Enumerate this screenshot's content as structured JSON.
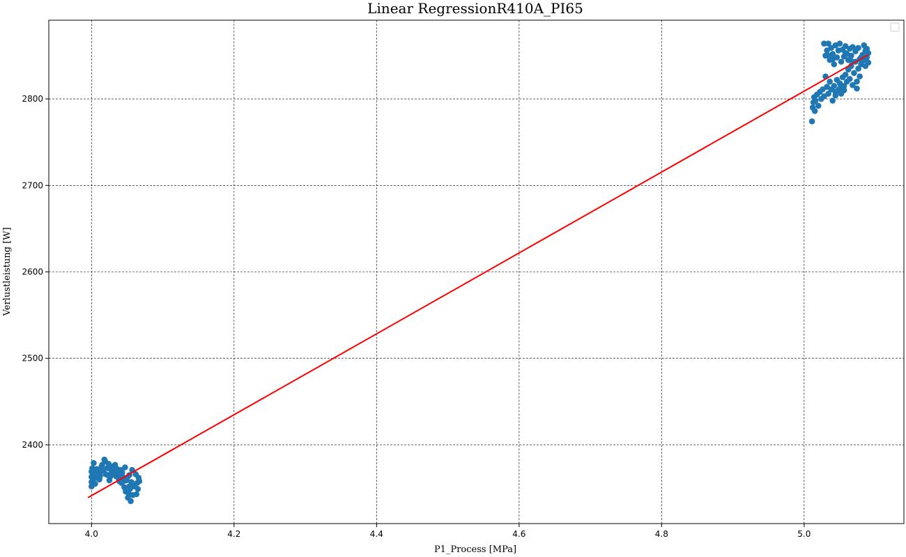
{
  "chart_data": {
    "type": "scatter",
    "title": "Linear RegressionR410A_PI65",
    "xlabel": "P1_Process [MPa]",
    "ylabel": "Verlustleistung [W]",
    "xlim": [
      3.94,
      5.14
    ],
    "ylim": [
      2309,
      2891
    ],
    "x_ticks": [
      4.0,
      4.2,
      4.4,
      4.6,
      4.8,
      5.0
    ],
    "x_tick_labels": [
      "4.0",
      "4.2",
      "4.4",
      "4.6",
      "4.8",
      "5.0"
    ],
    "y_ticks": [
      2400,
      2500,
      2600,
      2700,
      2800
    ],
    "y_tick_labels": [
      "2400",
      "2500",
      "2600",
      "2700",
      "2800"
    ],
    "grid": true,
    "legend": {
      "placement": "top-right",
      "entries": []
    },
    "colors": {
      "scatter": "#1f77b4",
      "regression": "#ff0000"
    },
    "series": [
      {
        "type": "scatter",
        "points": [
          [
            4.0,
            2369
          ],
          [
            4.0,
            2357
          ],
          [
            4.0,
            2363
          ],
          [
            4.0,
            2352
          ],
          [
            4.001,
            2373
          ],
          [
            4.002,
            2360
          ],
          [
            4.003,
            2379
          ],
          [
            4.004,
            2366
          ],
          [
            4.006,
            2362
          ],
          [
            4.008,
            2371
          ],
          [
            4.01,
            2368
          ],
          [
            4.012,
            2364
          ],
          [
            4.014,
            2375
          ],
          [
            4.016,
            2370
          ],
          [
            4.018,
            2383
          ],
          [
            4.02,
            2366
          ],
          [
            4.022,
            2373
          ],
          [
            4.024,
            2378
          ],
          [
            4.026,
            2363
          ],
          [
            4.028,
            2370
          ],
          [
            4.03,
            2368
          ],
          [
            4.032,
            2375
          ],
          [
            4.034,
            2364
          ],
          [
            4.036,
            2372
          ],
          [
            4.038,
            2361
          ],
          [
            4.04,
            2367
          ],
          [
            4.042,
            2356
          ],
          [
            4.044,
            2363
          ],
          [
            4.046,
            2351
          ],
          [
            4.048,
            2346
          ],
          [
            4.049,
            2359
          ],
          [
            4.05,
            2362
          ],
          [
            4.051,
            2339
          ],
          [
            4.052,
            2344
          ],
          [
            4.053,
            2365
          ],
          [
            4.054,
            2349
          ],
          [
            4.055,
            2335
          ],
          [
            4.056,
            2357
          ],
          [
            4.057,
            2371
          ],
          [
            4.058,
            2342
          ],
          [
            4.06,
            2352
          ],
          [
            4.062,
            2366
          ],
          [
            4.063,
            2343
          ],
          [
            4.064,
            2356
          ],
          [
            4.065,
            2349
          ],
          [
            4.066,
            2362
          ],
          [
            4.067,
            2358
          ],
          [
            4.047,
            2374
          ],
          [
            4.045,
            2358
          ],
          [
            4.043,
            2368
          ],
          [
            4.041,
            2371
          ],
          [
            4.039,
            2358
          ],
          [
            4.035,
            2369
          ],
          [
            4.031,
            2372
          ],
          [
            4.027,
            2375
          ],
          [
            4.023,
            2365
          ],
          [
            4.019,
            2381
          ],
          [
            4.015,
            2377
          ],
          [
            4.011,
            2360
          ],
          [
            4.007,
            2372
          ],
          [
            4.005,
            2355
          ],
          [
            4.025,
            2359
          ],
          [
            4.033,
            2377
          ],
          [
            4.053,
            2352
          ],
          [
            5.011,
            2774
          ],
          [
            5.012,
            2790
          ],
          [
            5.013,
            2796
          ],
          [
            5.014,
            2802
          ],
          [
            5.015,
            2786
          ],
          [
            5.016,
            2798
          ],
          [
            5.018,
            2805
          ],
          [
            5.02,
            2792
          ],
          [
            5.022,
            2808
          ],
          [
            5.024,
            2800
          ],
          [
            5.026,
            2811
          ],
          [
            5.028,
            2803
          ],
          [
            5.03,
            2826
          ],
          [
            5.032,
            2814
          ],
          [
            5.034,
            2806
          ],
          [
            5.036,
            2820
          ],
          [
            5.038,
            2811
          ],
          [
            5.04,
            2798
          ],
          [
            5.042,
            2815
          ],
          [
            5.044,
            2808
          ],
          [
            5.046,
            2822
          ],
          [
            5.048,
            2810
          ],
          [
            5.05,
            2818
          ],
          [
            5.052,
            2806
          ],
          [
            5.054,
            2825
          ],
          [
            5.056,
            2815
          ],
          [
            5.058,
            2828
          ],
          [
            5.06,
            2820
          ],
          [
            5.062,
            2834
          ],
          [
            5.064,
            2823
          ],
          [
            5.066,
            2838
          ],
          [
            5.068,
            2816
          ],
          [
            5.07,
            2830
          ],
          [
            5.072,
            2843
          ],
          [
            5.074,
            2820
          ],
          [
            5.076,
            2835
          ],
          [
            5.078,
            2846
          ],
          [
            5.08,
            2840
          ],
          [
            5.082,
            2851
          ],
          [
            5.084,
            2845
          ],
          [
            5.086,
            2856
          ],
          [
            5.088,
            2848
          ],
          [
            5.09,
            2853
          ],
          [
            5.03,
            2850
          ],
          [
            5.032,
            2856
          ],
          [
            5.034,
            2864
          ],
          [
            5.036,
            2845
          ],
          [
            5.038,
            2859
          ],
          [
            5.04,
            2852
          ],
          [
            5.042,
            2840
          ],
          [
            5.044,
            2862
          ],
          [
            5.046,
            2848
          ],
          [
            5.048,
            2856
          ],
          [
            5.05,
            2864
          ],
          [
            5.052,
            2843
          ],
          [
            5.054,
            2857
          ],
          [
            5.056,
            2849
          ],
          [
            5.058,
            2861
          ],
          [
            5.06,
            2852
          ],
          [
            5.062,
            2845
          ],
          [
            5.064,
            2858
          ],
          [
            5.066,
            2850
          ],
          [
            5.068,
            2860
          ],
          [
            5.072,
            2855
          ],
          [
            5.076,
            2859
          ],
          [
            5.08,
            2848
          ],
          [
            5.084,
            2862
          ],
          [
            5.088,
            2858
          ],
          [
            5.09,
            2842
          ],
          [
            5.044,
            2804
          ],
          [
            5.05,
            2812
          ],
          [
            5.056,
            2810
          ],
          [
            5.074,
            2812
          ],
          [
            5.078,
            2826
          ],
          [
            5.086,
            2838
          ],
          [
            5.034,
            2850
          ],
          [
            5.028,
            2864
          ],
          [
            5.04,
            2846
          ],
          [
            5.058,
            2853
          ],
          [
            5.066,
            2844
          ]
        ]
      },
      {
        "type": "line",
        "points": [
          [
            3.995,
            2339
          ],
          [
            5.09,
            2851
          ]
        ]
      }
    ]
  }
}
